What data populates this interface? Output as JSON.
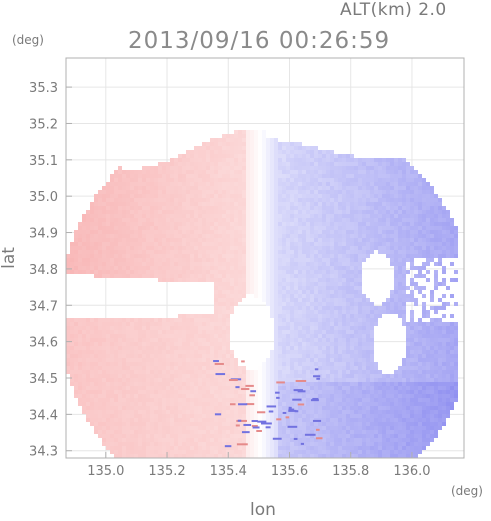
{
  "header": {
    "altitude_label": "ALT(km) 2.0",
    "timestamp": "2013/09/16 00:26:59"
  },
  "chart_data": {
    "type": "heatmap",
    "title": "2013/09/16 00:26:59",
    "subtitle": "ALT(km) 2.0",
    "xlabel": "lon",
    "ylabel": "lat",
    "x_unit": "(deg)",
    "y_unit": "(deg)",
    "xlim": [
      134.87,
      136.17
    ],
    "ylim": [
      34.28,
      35.38
    ],
    "x_ticks": [
      135.0,
      135.2,
      135.4,
      135.6,
      135.8,
      136.0
    ],
    "x_tick_labels": [
      "135.0",
      "135.2",
      "135.4",
      "135.6",
      "135.8",
      "136.0"
    ],
    "y_ticks": [
      34.3,
      34.4,
      34.5,
      34.6,
      34.7,
      34.8,
      34.9,
      35.0,
      35.1,
      35.2,
      35.3
    ],
    "y_tick_labels": [
      "34.3",
      "34.4",
      "34.5",
      "34.6",
      "34.7",
      "34.8",
      "34.9",
      "35.0",
      "35.1",
      "35.2",
      "35.3"
    ],
    "grid": true,
    "colors": {
      "positive": "#f7a8a8",
      "negative": "#8f8ff0",
      "zero": "#ffffff",
      "axis": "#b0b0b0"
    },
    "field": {
      "radar_center": [
        135.52,
        34.68
      ],
      "radius_deg": 0.68,
      "data_top_lat": 35.12,
      "east_blue_lon": 135.55,
      "west_red_lon": 135.45,
      "gap_band": {
        "west_lon": 134.87,
        "east_lon": 135.35,
        "lat_low": 34.67,
        "lat_high": 34.79
      },
      "east_cutoff_lon": 136.15
    }
  }
}
